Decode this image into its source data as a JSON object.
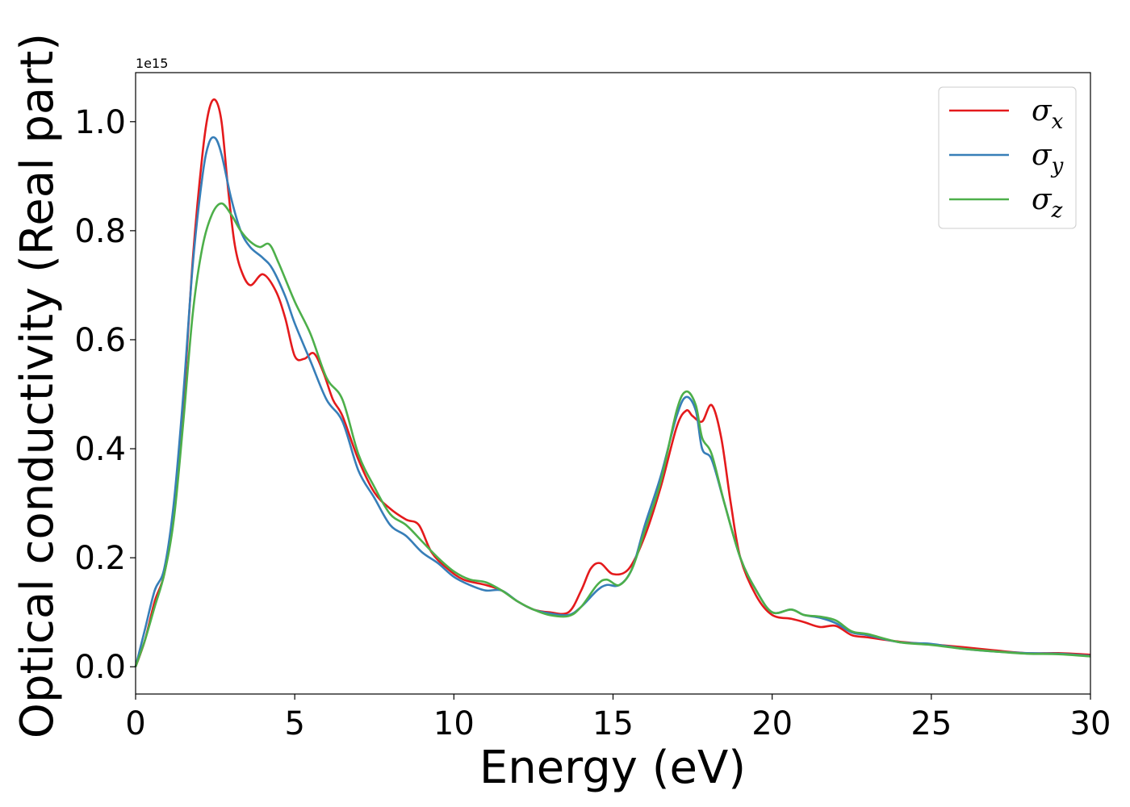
{
  "chart_data": {
    "type": "line",
    "title": "",
    "xlabel": "Energy (eV)",
    "ylabel": "Optical conductivity (Real part)",
    "y_offset_label": "1e15",
    "xlim": [
      0,
      30
    ],
    "ylim": [
      -0.05,
      1.09
    ],
    "x_ticks": [
      0,
      5,
      10,
      15,
      20,
      25,
      30
    ],
    "x_tick_labels": [
      "0",
      "5",
      "10",
      "15",
      "20",
      "25",
      "30"
    ],
    "y_ticks": [
      0.0,
      0.2,
      0.4,
      0.6,
      0.8,
      1.0
    ],
    "y_tick_labels": [
      "0.0",
      "0.2",
      "0.4",
      "0.6",
      "0.8",
      "1.0"
    ],
    "grid": false,
    "legend_position": "top-right",
    "series": [
      {
        "name": "σx",
        "label_base": "σ",
        "label_sub": "x",
        "color": "#e41a1c",
        "points": [
          [
            0,
            0
          ],
          [
            0.3,
            0.05
          ],
          [
            0.6,
            0.12
          ],
          [
            0.9,
            0.17
          ],
          [
            1.2,
            0.28
          ],
          [
            1.5,
            0.48
          ],
          [
            1.8,
            0.75
          ],
          [
            2.1,
            0.94
          ],
          [
            2.3,
            1.02
          ],
          [
            2.5,
            1.04
          ],
          [
            2.7,
            1.0
          ],
          [
            2.9,
            0.88
          ],
          [
            3.1,
            0.78
          ],
          [
            3.3,
            0.73
          ],
          [
            3.6,
            0.7
          ],
          [
            4.0,
            0.72
          ],
          [
            4.4,
            0.69
          ],
          [
            4.7,
            0.64
          ],
          [
            5.0,
            0.57
          ],
          [
            5.3,
            0.565
          ],
          [
            5.6,
            0.575
          ],
          [
            5.9,
            0.54
          ],
          [
            6.2,
            0.49
          ],
          [
            6.5,
            0.46
          ],
          [
            7.0,
            0.38
          ],
          [
            7.5,
            0.32
          ],
          [
            8.0,
            0.29
          ],
          [
            8.5,
            0.27
          ],
          [
            8.9,
            0.26
          ],
          [
            9.3,
            0.21
          ],
          [
            9.8,
            0.18
          ],
          [
            10.3,
            0.16
          ],
          [
            11.0,
            0.15
          ],
          [
            11.5,
            0.14
          ],
          [
            12.0,
            0.12
          ],
          [
            12.5,
            0.105
          ],
          [
            13.0,
            0.1
          ],
          [
            13.6,
            0.1
          ],
          [
            14.0,
            0.14
          ],
          [
            14.3,
            0.18
          ],
          [
            14.6,
            0.19
          ],
          [
            15.0,
            0.17
          ],
          [
            15.5,
            0.18
          ],
          [
            16.0,
            0.24
          ],
          [
            16.5,
            0.33
          ],
          [
            17.0,
            0.44
          ],
          [
            17.3,
            0.47
          ],
          [
            17.5,
            0.46
          ],
          [
            17.8,
            0.45
          ],
          [
            18.1,
            0.48
          ],
          [
            18.4,
            0.42
          ],
          [
            18.7,
            0.3
          ],
          [
            19.0,
            0.2
          ],
          [
            19.5,
            0.13
          ],
          [
            20.0,
            0.095
          ],
          [
            20.6,
            0.088
          ],
          [
            21.0,
            0.082
          ],
          [
            21.5,
            0.073
          ],
          [
            22.0,
            0.075
          ],
          [
            22.5,
            0.058
          ],
          [
            23.0,
            0.054
          ],
          [
            24.0,
            0.046
          ],
          [
            25.0,
            0.041
          ],
          [
            26.0,
            0.036
          ],
          [
            27.0,
            0.03
          ],
          [
            28.0,
            0.025
          ],
          [
            29.0,
            0.025
          ],
          [
            30.0,
            0.022
          ]
        ]
      },
      {
        "name": "σy",
        "label_base": "σ",
        "label_sub": "y",
        "color": "#377eb8",
        "points": [
          [
            0,
            0
          ],
          [
            0.3,
            0.07
          ],
          [
            0.6,
            0.14
          ],
          [
            0.9,
            0.18
          ],
          [
            1.2,
            0.3
          ],
          [
            1.5,
            0.5
          ],
          [
            1.8,
            0.74
          ],
          [
            2.1,
            0.9
          ],
          [
            2.3,
            0.96
          ],
          [
            2.5,
            0.97
          ],
          [
            2.7,
            0.94
          ],
          [
            3.0,
            0.86
          ],
          [
            3.3,
            0.8
          ],
          [
            3.6,
            0.77
          ],
          [
            4.0,
            0.75
          ],
          [
            4.3,
            0.73
          ],
          [
            4.7,
            0.68
          ],
          [
            5.0,
            0.63
          ],
          [
            5.5,
            0.56
          ],
          [
            6.0,
            0.49
          ],
          [
            6.5,
            0.45
          ],
          [
            7.0,
            0.36
          ],
          [
            7.5,
            0.31
          ],
          [
            8.0,
            0.26
          ],
          [
            8.5,
            0.24
          ],
          [
            9.0,
            0.21
          ],
          [
            9.5,
            0.19
          ],
          [
            10.0,
            0.165
          ],
          [
            10.5,
            0.15
          ],
          [
            11.0,
            0.14
          ],
          [
            11.5,
            0.14
          ],
          [
            12.0,
            0.12
          ],
          [
            12.5,
            0.105
          ],
          [
            13.0,
            0.098
          ],
          [
            13.6,
            0.095
          ],
          [
            14.0,
            0.11
          ],
          [
            14.5,
            0.14
          ],
          [
            14.8,
            0.15
          ],
          [
            15.2,
            0.15
          ],
          [
            15.6,
            0.18
          ],
          [
            16.0,
            0.26
          ],
          [
            16.5,
            0.35
          ],
          [
            17.0,
            0.46
          ],
          [
            17.3,
            0.495
          ],
          [
            17.6,
            0.47
          ],
          [
            17.8,
            0.4
          ],
          [
            18.1,
            0.38
          ],
          [
            18.5,
            0.3
          ],
          [
            19.0,
            0.2
          ],
          [
            19.5,
            0.14
          ],
          [
            20.0,
            0.1
          ],
          [
            20.6,
            0.105
          ],
          [
            21.0,
            0.095
          ],
          [
            21.5,
            0.09
          ],
          [
            22.0,
            0.08
          ],
          [
            22.5,
            0.063
          ],
          [
            23.0,
            0.058
          ],
          [
            24.0,
            0.045
          ],
          [
            25.0,
            0.042
          ],
          [
            26.0,
            0.033
          ],
          [
            27.0,
            0.028
          ],
          [
            28.0,
            0.025
          ],
          [
            29.0,
            0.024
          ],
          [
            30.0,
            0.02
          ]
        ]
      },
      {
        "name": "σz",
        "label_base": "σ",
        "label_sub": "z",
        "color": "#4daf4a",
        "points": [
          [
            0,
            0
          ],
          [
            0.3,
            0.05
          ],
          [
            0.6,
            0.11
          ],
          [
            0.9,
            0.17
          ],
          [
            1.2,
            0.27
          ],
          [
            1.5,
            0.45
          ],
          [
            1.8,
            0.65
          ],
          [
            2.1,
            0.77
          ],
          [
            2.4,
            0.83
          ],
          [
            2.7,
            0.85
          ],
          [
            3.0,
            0.83
          ],
          [
            3.3,
            0.8
          ],
          [
            3.6,
            0.78
          ],
          [
            3.9,
            0.77
          ],
          [
            4.2,
            0.775
          ],
          [
            4.5,
            0.74
          ],
          [
            5.0,
            0.67
          ],
          [
            5.5,
            0.61
          ],
          [
            6.0,
            0.53
          ],
          [
            6.5,
            0.49
          ],
          [
            7.0,
            0.39
          ],
          [
            7.5,
            0.33
          ],
          [
            8.0,
            0.28
          ],
          [
            8.5,
            0.26
          ],
          [
            9.0,
            0.23
          ],
          [
            9.5,
            0.2
          ],
          [
            10.0,
            0.175
          ],
          [
            10.5,
            0.16
          ],
          [
            11.0,
            0.155
          ],
          [
            11.5,
            0.14
          ],
          [
            12.0,
            0.12
          ],
          [
            12.5,
            0.105
          ],
          [
            13.0,
            0.095
          ],
          [
            13.6,
            0.093
          ],
          [
            14.0,
            0.11
          ],
          [
            14.5,
            0.15
          ],
          [
            14.8,
            0.16
          ],
          [
            15.2,
            0.15
          ],
          [
            15.6,
            0.18
          ],
          [
            16.0,
            0.25
          ],
          [
            16.5,
            0.34
          ],
          [
            17.0,
            0.47
          ],
          [
            17.3,
            0.505
          ],
          [
            17.6,
            0.48
          ],
          [
            17.8,
            0.42
          ],
          [
            18.1,
            0.39
          ],
          [
            18.5,
            0.3
          ],
          [
            19.0,
            0.2
          ],
          [
            19.5,
            0.14
          ],
          [
            20.0,
            0.1
          ],
          [
            20.6,
            0.105
          ],
          [
            21.0,
            0.095
          ],
          [
            21.5,
            0.092
          ],
          [
            22.0,
            0.085
          ],
          [
            22.5,
            0.065
          ],
          [
            23.0,
            0.06
          ],
          [
            24.0,
            0.045
          ],
          [
            25.0,
            0.04
          ],
          [
            26.0,
            0.033
          ],
          [
            27.0,
            0.028
          ],
          [
            28.0,
            0.024
          ],
          [
            29.0,
            0.023
          ],
          [
            30.0,
            0.019
          ]
        ]
      }
    ]
  }
}
